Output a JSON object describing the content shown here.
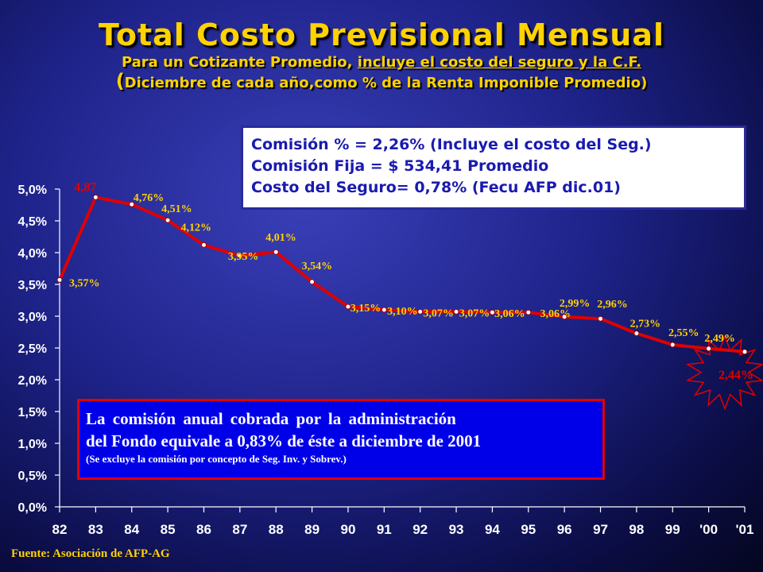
{
  "header": {
    "title": "Total Costo Previsional Mensual",
    "subtitle_prefix": "Para un Cotizante Promedio, ",
    "subtitle_underlined": "incluye el costo del seguro y la C.F.",
    "subtitle2_open": "(",
    "subtitle2_text": "Diciembre de cada año,como % de la Renta Imponible Promedio",
    "subtitle2_close": ")"
  },
  "info_box": {
    "line1": "Comisión % = 2,26% (Incluye el costo del Seg.)",
    "line2": "Comisión Fija = $ 534,41 Promedio",
    "line3": "Costo del Seguro= 0,78% (Fecu AFP dic.01)"
  },
  "note_box": {
    "line1": "La comisión anual cobrada por la administración",
    "line2": "del Fondo equivale a 0,83% de éste a diciembre de 2001",
    "line3": "(Se excluye la comisión por concepto de Seg. Inv. y Sobrev.)"
  },
  "source": "Fuente: Asociación de AFP-AG",
  "colors": {
    "line": "#e00000",
    "label_yellow": "#ffd200",
    "label_red": "#e00000",
    "axis_text": "#ffffff",
    "title": "#ffd200"
  },
  "chart_data": {
    "type": "line",
    "title": "Total Costo Previsional Mensual",
    "xlabel": "",
    "ylabel": "",
    "categories": [
      "82",
      "83",
      "84",
      "85",
      "86",
      "87",
      "88",
      "89",
      "90",
      "91",
      "92",
      "93",
      "94",
      "95",
      "96",
      "97",
      "98",
      "99",
      "'00",
      "'01"
    ],
    "values": [
      3.57,
      4.87,
      4.76,
      4.51,
      4.12,
      3.95,
      4.01,
      3.54,
      3.15,
      3.1,
      3.07,
      3.07,
      3.06,
      3.06,
      2.99,
      2.96,
      2.73,
      2.55,
      2.49,
      2.44
    ],
    "point_labels": [
      "3,57%",
      "4,87",
      "4,76%",
      "4,51%",
      "4,12%",
      "3,95%",
      "4,01%",
      "3,54%",
      "3,15%",
      "3,10%",
      "3,07%",
      "3,07%",
      "3,06%",
      "3,06%",
      "2,99%",
      "2,96%",
      "2,73%",
      "2,55%",
      "2,49%",
      "2,44%"
    ],
    "ylim": [
      0,
      5
    ],
    "y_ticks": [
      0,
      0.5,
      1,
      1.5,
      2,
      2.5,
      3,
      3.5,
      4,
      4.5,
      5
    ],
    "y_tick_labels": [
      "0,0%",
      "0,5%",
      "1,0%",
      "1,5%",
      "2,0%",
      "2,5%",
      "3,0%",
      "3,5%",
      "4,0%",
      "4,5%",
      "5,0%"
    ],
    "grid": false,
    "legend": "none",
    "highlighted_points": [
      "83",
      "'01"
    ]
  }
}
